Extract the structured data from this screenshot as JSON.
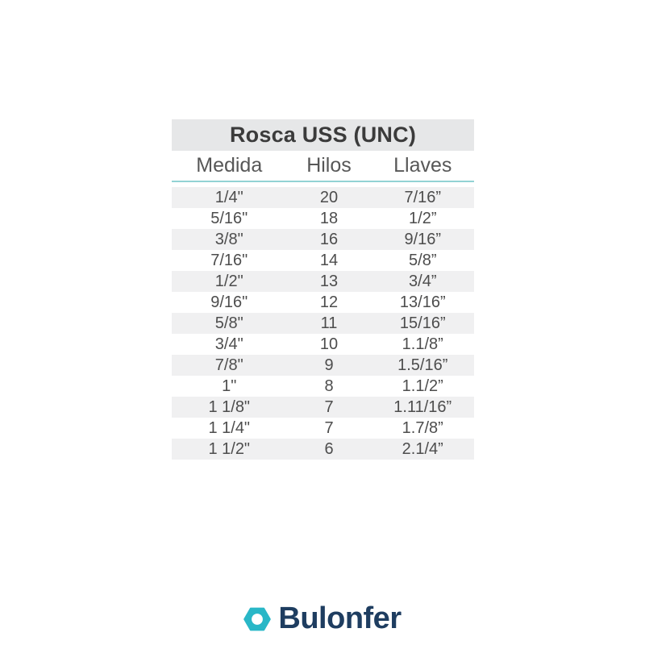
{
  "table": {
    "title": "Rosca USS (UNC)",
    "columns": [
      "Medida",
      "Hilos",
      "Llaves"
    ],
    "rows": [
      [
        "1/4\"",
        "20",
        "7/16”"
      ],
      [
        "5/16\"",
        "18",
        "1/2”"
      ],
      [
        "3/8\"",
        "16",
        "9/16”"
      ],
      [
        "7/16\"",
        "14",
        "5/8”"
      ],
      [
        "1/2\"",
        "13",
        "3/4”"
      ],
      [
        "9/16\"",
        "12",
        "13/16”"
      ],
      [
        "5/8\"",
        "11",
        "15/16”"
      ],
      [
        "3/4\"",
        "10",
        "1.1/8”"
      ],
      [
        "7/8\"",
        "9",
        "1.5/16”"
      ],
      [
        "1\"",
        "8",
        "1.1/2”"
      ],
      [
        "1 1/8\"",
        "7",
        "1.11/16”"
      ],
      [
        "1 1/4\"",
        "7",
        "1.7/8”"
      ],
      [
        "1 1/2\"",
        "6",
        "2.1/4”"
      ]
    ]
  },
  "logo": {
    "brand": "Bulonfer",
    "icon": "hexagon-nut-icon"
  },
  "colors": {
    "page_bg": "#ffffff",
    "title_band_bg": "#e6e7e8",
    "row_stripe_bg": "#f0f0f1",
    "header_underline": "#93d2d4",
    "title_text": "#3b3b3b",
    "header_text": "#575757",
    "cell_text": "#4d4d4d",
    "logo_teal": "#29b7c7",
    "logo_navy": "#1e3d60"
  }
}
